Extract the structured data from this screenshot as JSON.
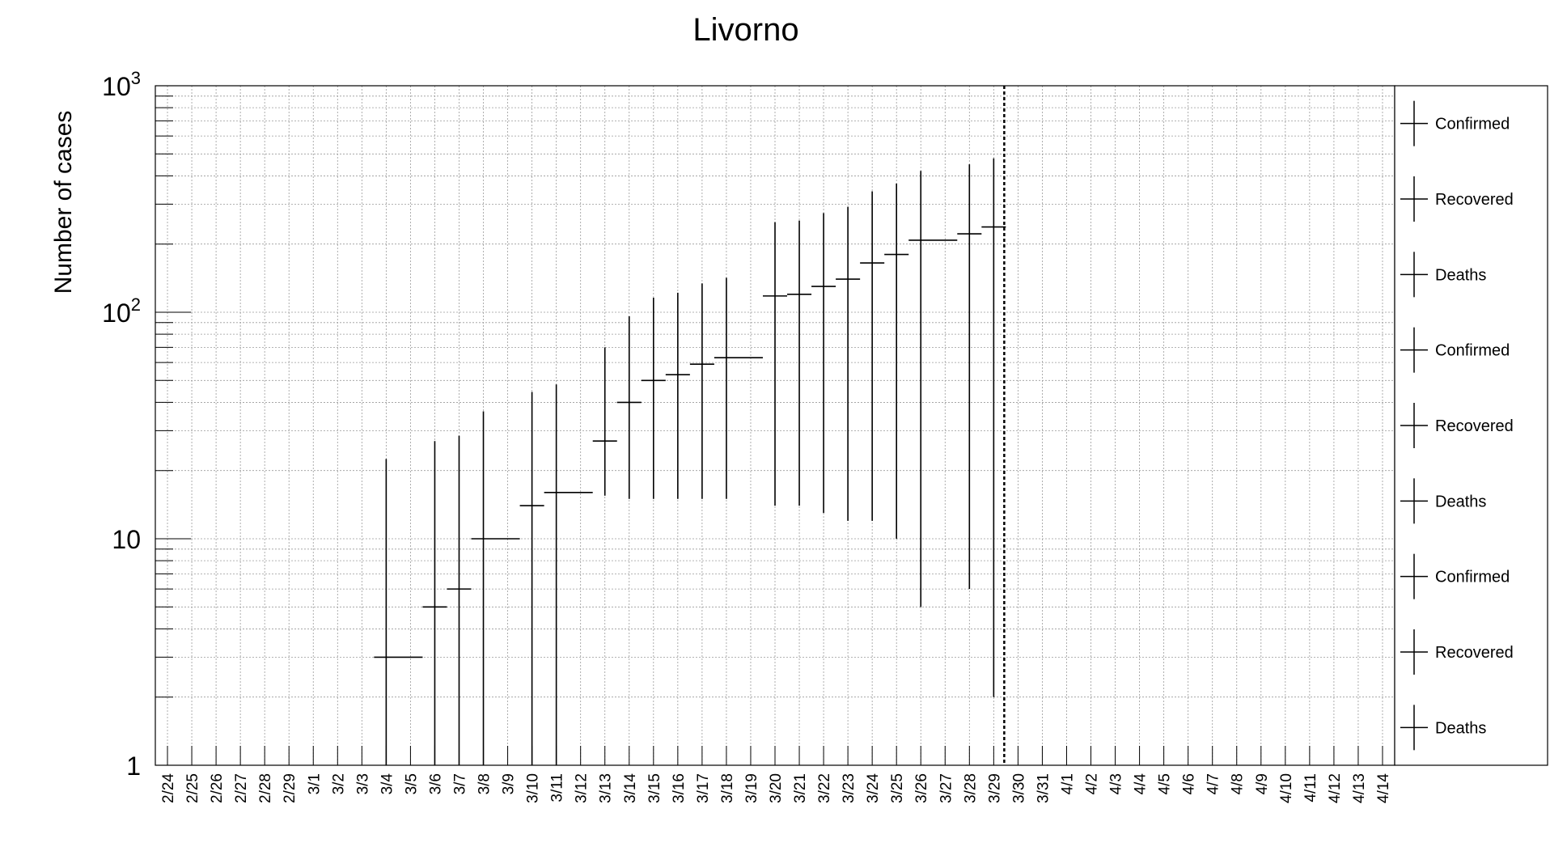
{
  "chart_data": {
    "type": "scatter",
    "title": "Livorno",
    "ylabel": "Number of cases",
    "xlabel": "",
    "yscale": "log",
    "ylim": [
      1,
      1000
    ],
    "ytick_labels": [
      {
        "value": 1,
        "text": "1"
      },
      {
        "value": 10,
        "text": "10"
      },
      {
        "value": 100,
        "base": "10",
        "exp": "2"
      },
      {
        "value": 1000,
        "base": "10",
        "exp": "3"
      }
    ],
    "grid": true,
    "categories": [
      "2/24",
      "2/25",
      "2/26",
      "2/27",
      "2/28",
      "2/29",
      "3/1",
      "3/2",
      "3/3",
      "3/4",
      "3/5",
      "3/6",
      "3/7",
      "3/8",
      "3/9",
      "3/10",
      "3/11",
      "3/12",
      "3/13",
      "3/14",
      "3/15",
      "3/16",
      "3/17",
      "3/18",
      "3/19",
      "3/20",
      "3/21",
      "3/22",
      "3/23",
      "3/24",
      "3/25",
      "3/26",
      "3/27",
      "3/28",
      "3/29",
      "3/30",
      "3/31",
      "4/1",
      "4/2",
      "4/3",
      "4/4",
      "4/5",
      "4/6",
      "4/7",
      "4/8",
      "4/9",
      "4/10",
      "4/11",
      "4/12",
      "4/13",
      "4/14"
    ],
    "vertical_marker_after": "3/29",
    "series": [
      {
        "name": "Confirmed",
        "color": "#000000",
        "points": [
          {
            "x": "3/4",
            "y": 3,
            "err_lo": 3,
            "err_hi": 19.5,
            "x_span": 2
          },
          {
            "x": "3/6",
            "y": 5,
            "err_lo": 5,
            "err_hi": 22
          },
          {
            "x": "3/7",
            "y": 6,
            "err_lo": 6,
            "err_hi": 22.5
          },
          {
            "x": "3/8",
            "y": 10,
            "err_lo": 10,
            "err_hi": 26.5,
            "x_span": 2
          },
          {
            "x": "3/10",
            "y": 14,
            "err_lo": 14,
            "err_hi": 30.5
          },
          {
            "x": "3/11",
            "y": 16,
            "err_lo": 16,
            "err_hi": 32,
            "x_span": 2
          },
          {
            "x": "3/13",
            "y": 27,
            "err_lo": 11.5,
            "err_hi": 43
          },
          {
            "x": "3/14",
            "y": 40,
            "err_lo": 25,
            "err_hi": 56
          },
          {
            "x": "3/15",
            "y": 50,
            "err_lo": 35,
            "err_hi": 66
          },
          {
            "x": "3/16",
            "y": 53,
            "err_lo": 38,
            "err_hi": 69
          },
          {
            "x": "3/17",
            "y": 59,
            "err_lo": 44,
            "err_hi": 75
          },
          {
            "x": "3/18",
            "y": 63,
            "err_lo": 48,
            "err_hi": 79,
            "x_span": 2
          },
          {
            "x": "3/20",
            "y": 118,
            "err_lo": 104,
            "err_hi": 132
          },
          {
            "x": "3/21",
            "y": 120,
            "err_lo": 106,
            "err_hi": 134
          },
          {
            "x": "3/22",
            "y": 130,
            "err_lo": 117,
            "err_hi": 144
          },
          {
            "x": "3/23",
            "y": 140,
            "err_lo": 128,
            "err_hi": 152
          },
          {
            "x": "3/24",
            "y": 165,
            "err_lo": 153,
            "err_hi": 177
          },
          {
            "x": "3/25",
            "y": 180,
            "err_lo": 170,
            "err_hi": 190
          },
          {
            "x": "3/26",
            "y": 208,
            "err_lo": 203,
            "err_hi": 213,
            "x_span": 2
          },
          {
            "x": "3/28",
            "y": 222,
            "err_lo": 216,
            "err_hi": 228
          },
          {
            "x": "3/29",
            "y": 238,
            "err_lo": 236,
            "err_hi": 240
          }
        ]
      },
      {
        "name": "Recovered",
        "color": "#000000",
        "points": []
      },
      {
        "name": "Deaths",
        "color": "#000000",
        "points": []
      }
    ],
    "legend": {
      "placement": "right",
      "entries": [
        "Confirmed",
        "Recovered",
        "Deaths",
        "Confirmed",
        "Recovered",
        "Deaths",
        "Confirmed",
        "Recovered",
        "Deaths"
      ]
    }
  }
}
